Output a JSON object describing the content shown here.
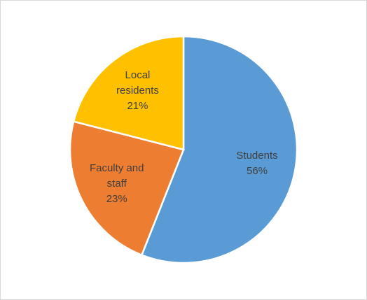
{
  "chart_data": {
    "type": "pie",
    "categories": [
      "Students",
      "Faculty and staff",
      "Local residents"
    ],
    "values": [
      56,
      23,
      21
    ],
    "value_labels": [
      "56%",
      "23%",
      "21%"
    ],
    "colors": [
      "#5b9bd5",
      "#ed7d31",
      "#ffc000"
    ]
  }
}
